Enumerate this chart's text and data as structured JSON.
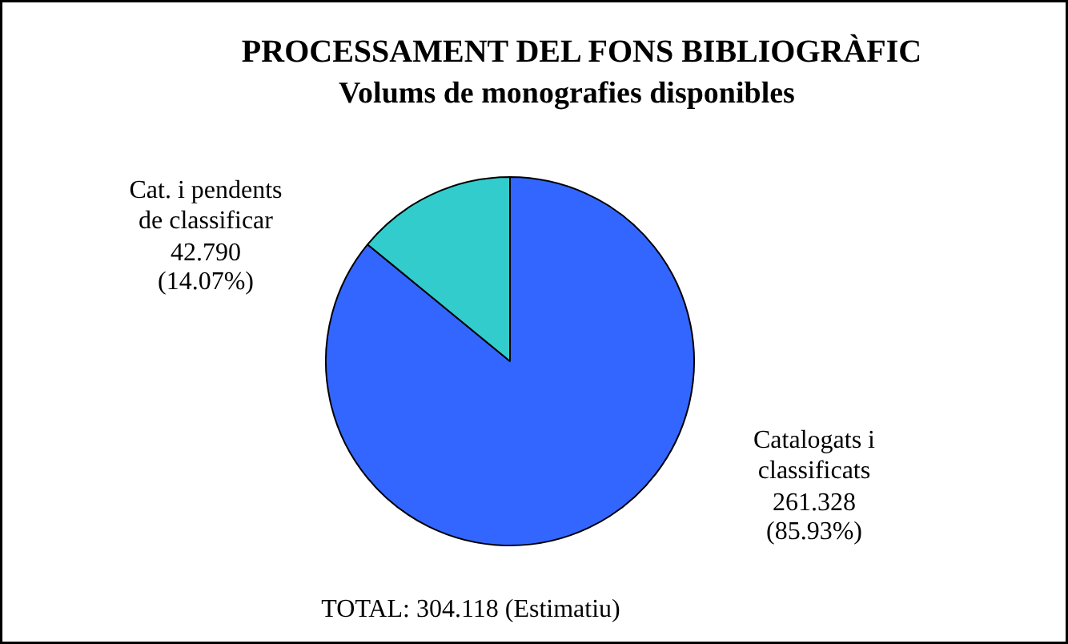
{
  "chart_data": {
    "type": "pie",
    "title": "PROCESSAMENT DEL FONS BIBLIOGRÀFIC",
    "subtitle": "Volums de monografies disponibles",
    "categories": [
      "Catalogats i classificats",
      "Cat. i pendents de classificar"
    ],
    "values": [
      85.93,
      14.07
    ],
    "colors": [
      "#3366ff",
      "#33cccc"
    ],
    "value_labels": [
      "261.328 (85.93%)",
      "42.790 (14.07%)"
    ],
    "annotations": [
      "TOTAL: 304.118 (Estimatiu)"
    ]
  }
}
